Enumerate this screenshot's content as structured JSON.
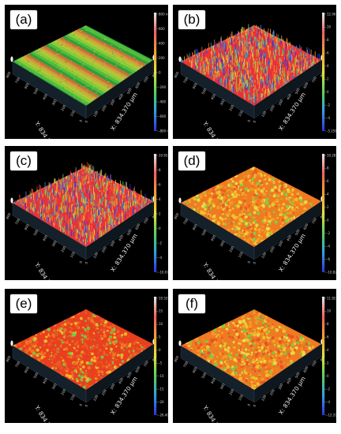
{
  "panels": [
    {
      "label": "(a)",
      "surface": "striped",
      "x_axis": "X: 834.370 µm",
      "y_axis": "Y: 834.370 µm",
      "ticks_x": [
        "0",
        "100",
        "200",
        "300",
        "400",
        "500",
        "600",
        "700",
        "800"
      ],
      "ticks_y": [
        "0",
        "100",
        "200",
        "300",
        "400",
        "500",
        "600",
        "700",
        "800"
      ],
      "scale_ticks": [
        "800 nm",
        "600",
        "400",
        "200",
        "0",
        "-200",
        "-400",
        "-600",
        "-800 nm"
      ],
      "palette": [
        "#2aa13a",
        "#58c23e",
        "#9ad23a",
        "#c7c93a",
        "#e3a23a",
        "#e46a3a"
      ]
    },
    {
      "label": "(b)",
      "surface": "spiky",
      "x_axis": "X: 834.370 µm",
      "y_axis": "Y: 834.370 µm",
      "ticks_x": [
        "0",
        "100",
        "200",
        "300",
        "400",
        "500",
        "600",
        "700",
        "800"
      ],
      "ticks_y": [
        "0",
        "100",
        "200",
        "300",
        "400",
        "500",
        "600",
        "700",
        "800"
      ],
      "scale_ticks": [
        "12.061 µm",
        "10",
        "8",
        "6",
        "4",
        "2",
        "0",
        "-2",
        "-4",
        "-5.258 µm"
      ],
      "palette": [
        "#e8323a",
        "#f06a2a",
        "#f2a03a",
        "#dccc3a",
        "#6ad24a",
        "#2f8fe0",
        "#2f3ae0"
      ]
    },
    {
      "label": "(c)",
      "surface": "spiky",
      "x_axis": "X: 834.370 µm",
      "y_axis": "Y: 834.370 µm",
      "ticks_x": [
        "0",
        "100",
        "200",
        "300",
        "400",
        "500",
        "600",
        "700",
        "800"
      ],
      "ticks_y": [
        "0",
        "100",
        "200",
        "300",
        "400",
        "500",
        "600",
        "700",
        "800"
      ],
      "scale_ticks": [
        "10.652 µm",
        "8",
        "6",
        "4",
        "2",
        "0",
        "-2",
        "-4",
        "-10.073 µm"
      ],
      "palette": [
        "#e8323a",
        "#f06a2a",
        "#f2a03a",
        "#dccc3a",
        "#6ad24a",
        "#2f8fe0",
        "#2f3ae0"
      ]
    },
    {
      "label": "(d)",
      "surface": "rough",
      "x_axis": "X: 834.370 µm",
      "y_axis": "Y: 834.370 µm",
      "ticks_x": [
        "0",
        "100",
        "200",
        "300",
        "400",
        "500",
        "600",
        "700",
        "800"
      ],
      "ticks_y": [
        "0",
        "100",
        "200",
        "300",
        "400",
        "500",
        "600",
        "700",
        "800"
      ],
      "scale_ticks": [
        "10.282 µm",
        "8",
        "6",
        "4",
        "2",
        "0",
        "-2",
        "-4",
        "-6",
        "-10.826 µm"
      ],
      "palette": [
        "#f07a22",
        "#f0a020",
        "#f2c82a",
        "#e8e04a",
        "#e85a28",
        "#7ad24a"
      ]
    },
    {
      "label": "(e)",
      "surface": "rough",
      "x_axis": "X: 834.370 µm",
      "y_axis": "Y: 834.370 µm",
      "ticks_x": [
        "0",
        "100",
        "200",
        "300",
        "400",
        "500",
        "600",
        "700",
        "800"
      ],
      "ticks_y": [
        "0",
        "100",
        "200",
        "300",
        "400",
        "500",
        "600",
        "700",
        "800"
      ],
      "scale_ticks": [
        "19.520 µm",
        "15",
        "10",
        "5",
        "0",
        "-5",
        "-10",
        "-15",
        "-20",
        "-26.408 µm"
      ],
      "palette": [
        "#e8401e",
        "#ee5a22",
        "#f07a22",
        "#e83a2a",
        "#f2c02a",
        "#6ad24a"
      ]
    },
    {
      "label": "(f)",
      "surface": "rough",
      "x_axis": "X: 834.370 µm",
      "y_axis": "Y: 834.370 µm",
      "ticks_x": [
        "0",
        "100",
        "200",
        "300",
        "400",
        "500",
        "600",
        "700",
        "800"
      ],
      "ticks_y": [
        "0",
        "100",
        "200",
        "300",
        "400",
        "500",
        "600",
        "700",
        "800"
      ],
      "scale_ticks": [
        "11.825 µm",
        "10",
        "8",
        "6",
        "4",
        "2",
        "0",
        "-2",
        "-4",
        "-12.209 µm"
      ],
      "palette": [
        "#f07a22",
        "#e8502a",
        "#f0a020",
        "#f2c82a",
        "#e8e04a",
        "#6ad24a"
      ]
    }
  ],
  "colorbar": [
    "#e8e8e8",
    "#f06060",
    "#f0a030",
    "#e8e040",
    "#5ad25a",
    "#30a0e0",
    "#3030e0"
  ]
}
